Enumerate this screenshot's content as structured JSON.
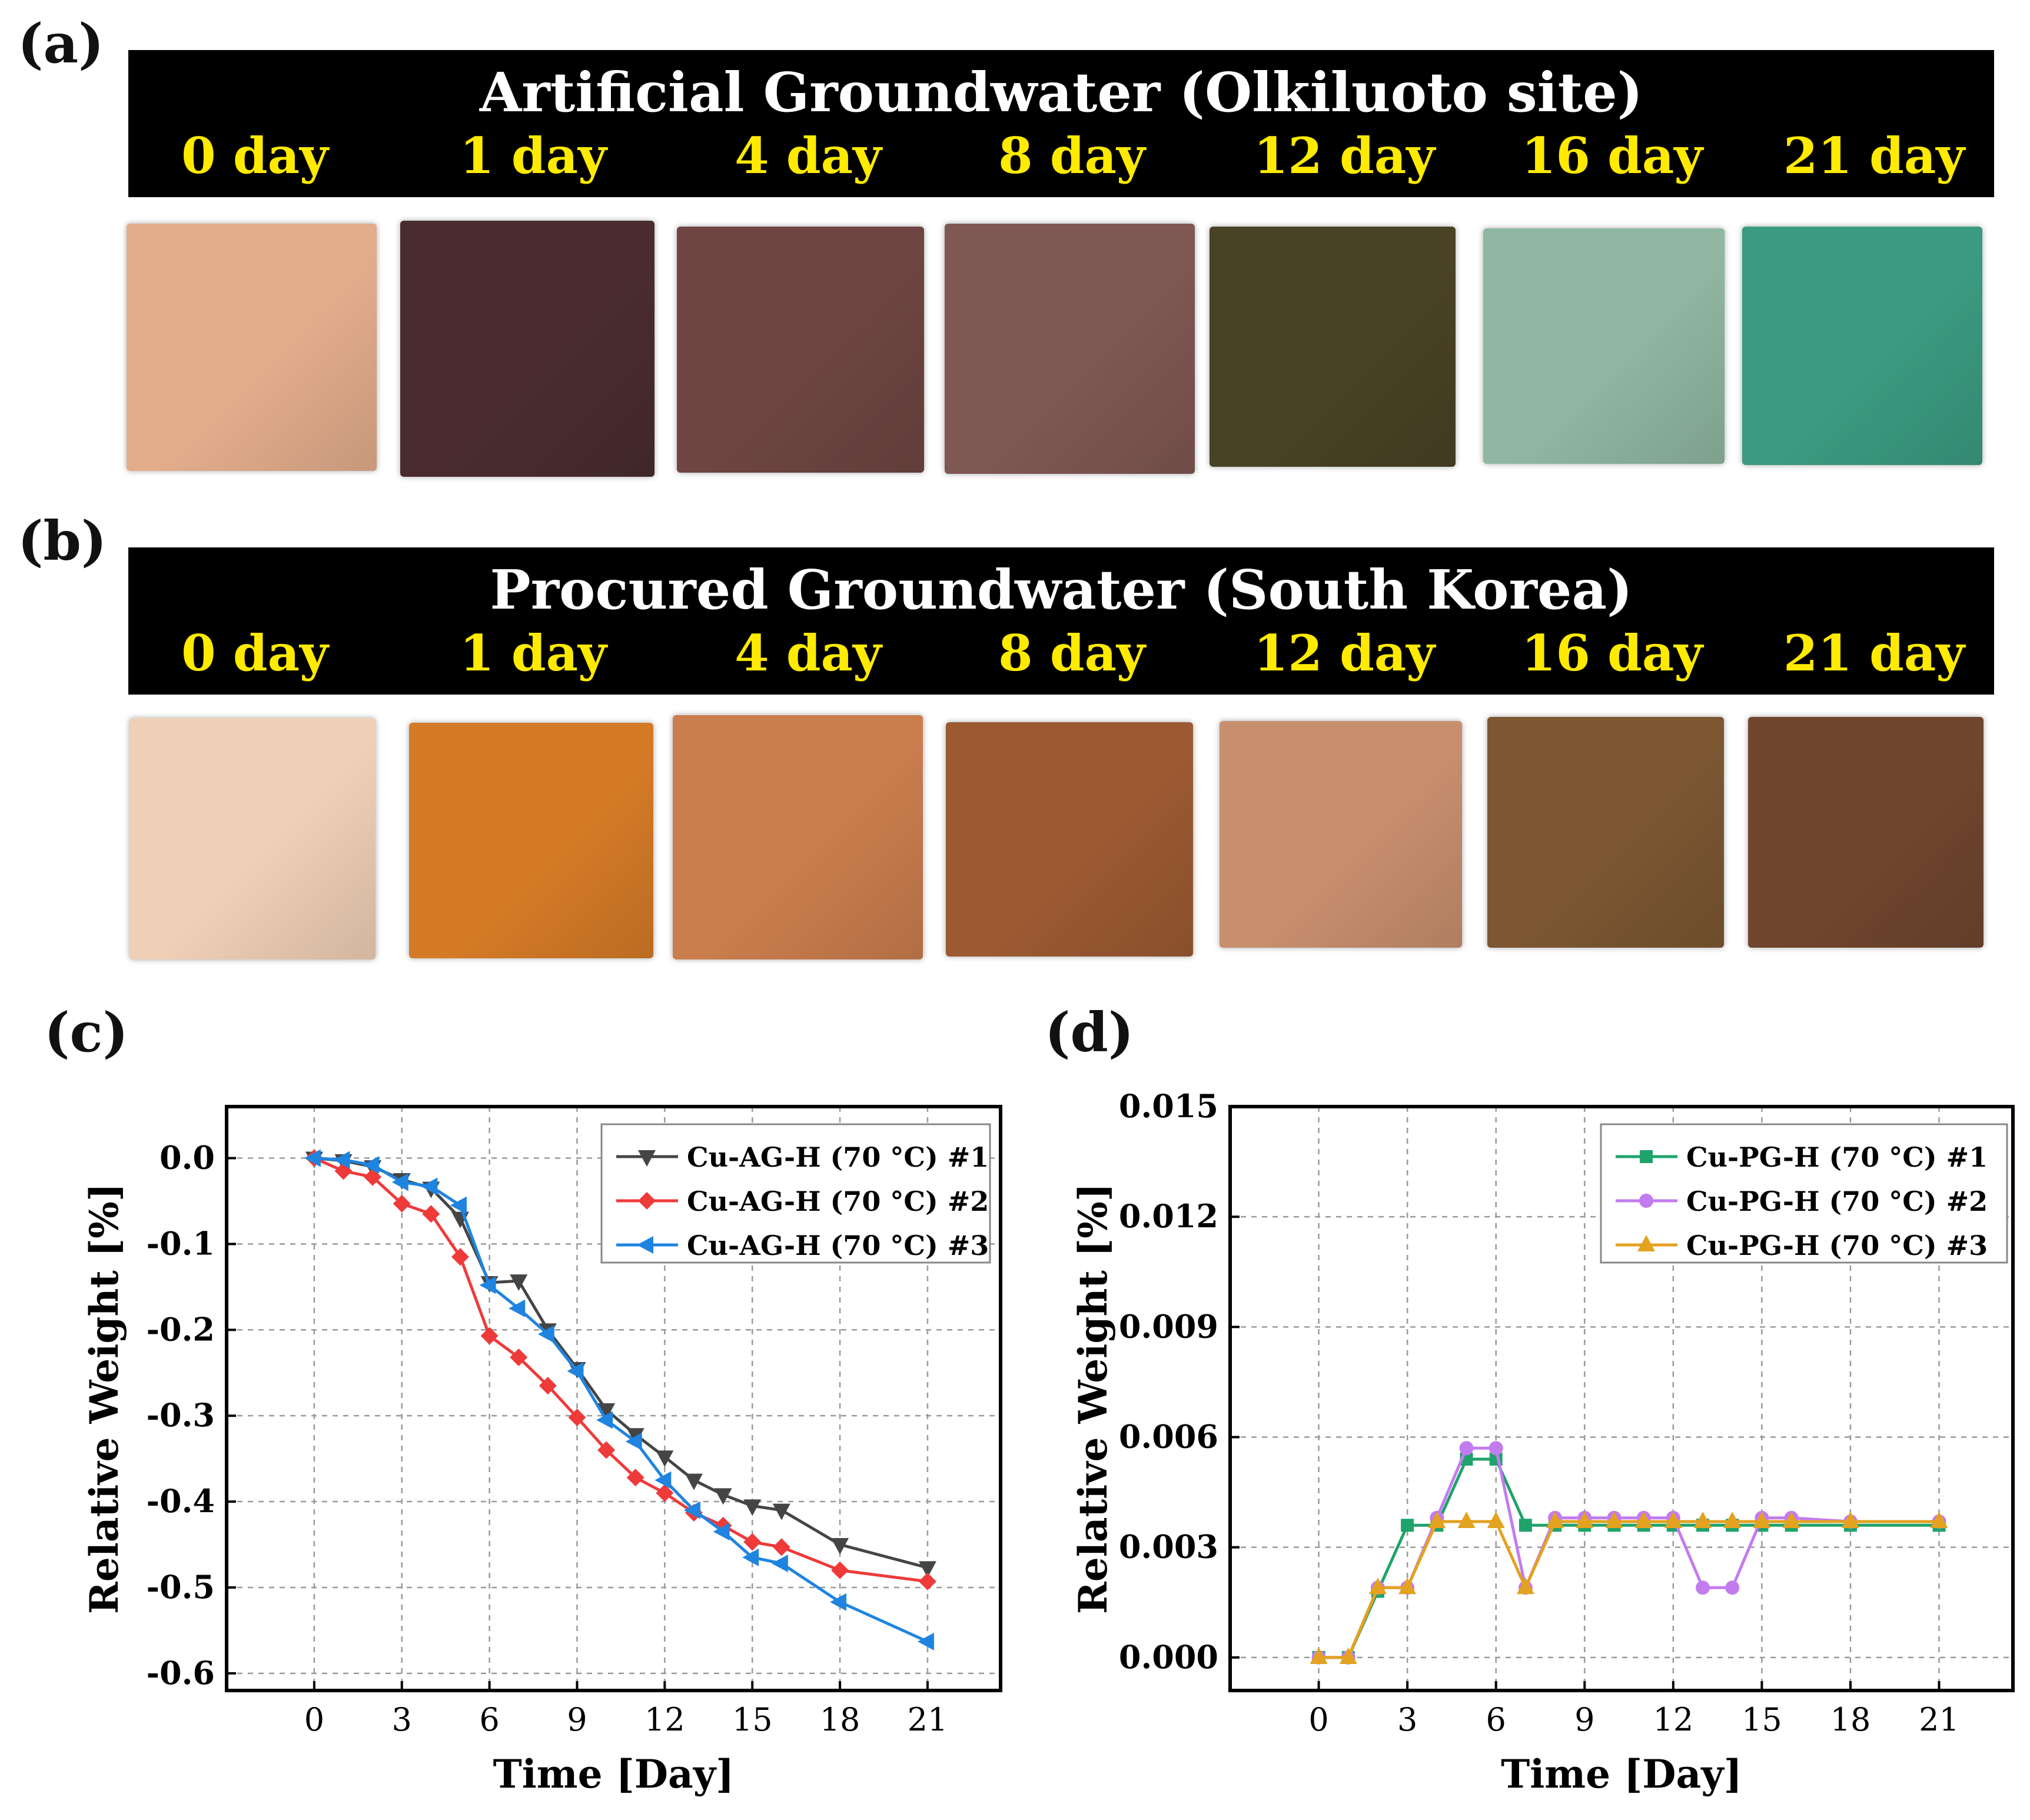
{
  "panels": {
    "a": {
      "label": "(a)",
      "title": "Artificial Groundwater (Olkiluoto site)",
      "days": [
        "0 day",
        "1 day",
        "4 day",
        "8 day",
        "12 day",
        "16 day",
        "21 day"
      ],
      "sample_colors": [
        "#e3ad8c",
        "#4a2c2e",
        "#6e4542",
        "#7f5753",
        "#4a4225",
        "#8fb7a1",
        "#3b9b80"
      ]
    },
    "b": {
      "label": "(b)",
      "title": "Procured Groundwater (South Korea)",
      "days": [
        "0 day",
        "1 day",
        "4 day",
        "8 day",
        "12 day",
        "16 day",
        "21 day"
      ],
      "sample_colors": [
        "#efcfb6",
        "#d57b27",
        "#ca7d4d",
        "#9c5a32",
        "#c88f6e",
        "#7c5732",
        "#70462e"
      ]
    },
    "c": {
      "label": "(c)"
    },
    "d": {
      "label": "(d)"
    }
  },
  "chart_data": [
    {
      "type": "line",
      "panel": "c",
      "xlabel": "Time [Day]",
      "ylabel": "Relative Weight [%]",
      "xlim": [
        -3,
        23.5
      ],
      "ylim": [
        -0.62,
        0.06
      ],
      "xticks": [
        0,
        3,
        6,
        9,
        12,
        15,
        18,
        21
      ],
      "xtick_labels": [
        "0",
        "3",
        "6",
        "9",
        "12",
        "15",
        "18",
        "21"
      ],
      "yticks": [
        0.0,
        -0.1,
        -0.2,
        -0.3,
        -0.4,
        -0.5,
        -0.6
      ],
      "ytick_labels": [
        "0.0",
        "-0.1",
        "-0.2",
        "-0.3",
        "-0.4",
        "-0.5",
        "-0.6"
      ],
      "grid": true,
      "legend_position": "top-right",
      "series": [
        {
          "name": "Cu-AG-H (70 °C) #1",
          "color": "#454545",
          "marker": "triangle-down",
          "x": [
            0,
            1,
            2,
            3,
            4,
            5,
            6,
            7,
            8,
            9,
            10,
            11,
            12,
            13,
            14,
            15,
            16,
            18,
            21
          ],
          "y": [
            0,
            -0.003,
            -0.01,
            -0.025,
            -0.035,
            -0.07,
            -0.145,
            -0.143,
            -0.2,
            -0.245,
            -0.293,
            -0.322,
            -0.348,
            -0.375,
            -0.392,
            -0.405,
            -0.41,
            -0.45,
            -0.477
          ]
        },
        {
          "name": "Cu-AG-H (70 °C) #2",
          "color": "#ef3a3a",
          "marker": "diamond",
          "x": [
            0,
            1,
            2,
            3,
            4,
            5,
            6,
            7,
            8,
            9,
            10,
            11,
            12,
            13,
            14,
            15,
            16,
            18,
            21
          ],
          "y": [
            0,
            -0.015,
            -0.022,
            -0.053,
            -0.065,
            -0.115,
            -0.207,
            -0.232,
            -0.265,
            -0.302,
            -0.34,
            -0.372,
            -0.39,
            -0.413,
            -0.428,
            -0.447,
            -0.453,
            -0.48,
            -0.493
          ]
        },
        {
          "name": "Cu-AG-H (70 °C) #3",
          "color": "#1f84e0",
          "marker": "triangle-left",
          "x": [
            0,
            1,
            2,
            3,
            4,
            5,
            6,
            7,
            8,
            9,
            10,
            11,
            12,
            13,
            14,
            15,
            16,
            18,
            21
          ],
          "y": [
            0,
            -0.002,
            -0.008,
            -0.028,
            -0.033,
            -0.055,
            -0.148,
            -0.175,
            -0.205,
            -0.248,
            -0.305,
            -0.33,
            -0.375,
            -0.41,
            -0.435,
            -0.465,
            -0.472,
            -0.517,
            -0.563
          ]
        }
      ]
    },
    {
      "type": "line",
      "panel": "d",
      "xlabel": "Time [Day]",
      "ylabel": "Relative Weight [%]",
      "xlim": [
        -3,
        23.5
      ],
      "ylim": [
        -0.0009,
        0.015
      ],
      "xticks": [
        0,
        3,
        6,
        9,
        12,
        15,
        18,
        21
      ],
      "xtick_labels": [
        "0",
        "3",
        "6",
        "9",
        "12",
        "15",
        "18",
        "21"
      ],
      "yticks": [
        0.0,
        0.003,
        0.006,
        0.009,
        0.012,
        0.015
      ],
      "ytick_labels": [
        "0.000",
        "0.003",
        "0.006",
        "0.009",
        "0.012",
        "0.015"
      ],
      "grid": true,
      "legend_position": "top-right",
      "series": [
        {
          "name": "Cu-PG-H (70 °C) #1",
          "color": "#1fa36b",
          "marker": "square",
          "x": [
            0,
            1,
            2,
            3,
            4,
            5,
            6,
            7,
            8,
            9,
            10,
            11,
            12,
            13,
            14,
            15,
            16,
            18,
            21
          ],
          "y": [
            0,
            0,
            0.0018,
            0.0036,
            0.0036,
            0.0054,
            0.0054,
            0.0036,
            0.0036,
            0.0036,
            0.0036,
            0.0036,
            0.0036,
            0.0036,
            0.0036,
            0.0036,
            0.0036,
            0.0036,
            0.0036
          ]
        },
        {
          "name": "Cu-PG-H (70 °C) #2",
          "color": "#c37bf0",
          "marker": "circle",
          "x": [
            0,
            1,
            2,
            3,
            4,
            5,
            6,
            7,
            8,
            9,
            10,
            11,
            12,
            13,
            14,
            15,
            16,
            18,
            21
          ],
          "y": [
            0,
            0,
            0.0019,
            0.0019,
            0.0038,
            0.0057,
            0.0057,
            0.0019,
            0.0038,
            0.0038,
            0.0038,
            0.0038,
            0.0038,
            0.0019,
            0.0019,
            0.0038,
            0.0038,
            0.0037,
            0.0037
          ]
        },
        {
          "name": "Cu-PG-H (70 °C) #3",
          "color": "#e3a21f",
          "marker": "triangle-up",
          "x": [
            0,
            1,
            2,
            3,
            4,
            5,
            6,
            7,
            8,
            9,
            10,
            11,
            12,
            13,
            14,
            15,
            16,
            18,
            21
          ],
          "y": [
            0,
            0,
            0.0019,
            0.0019,
            0.0037,
            0.0037,
            0.0037,
            0.0019,
            0.0037,
            0.0037,
            0.0037,
            0.0037,
            0.0037,
            0.0037,
            0.0037,
            0.0037,
            0.0037,
            0.0037,
            0.0037
          ]
        }
      ]
    }
  ]
}
